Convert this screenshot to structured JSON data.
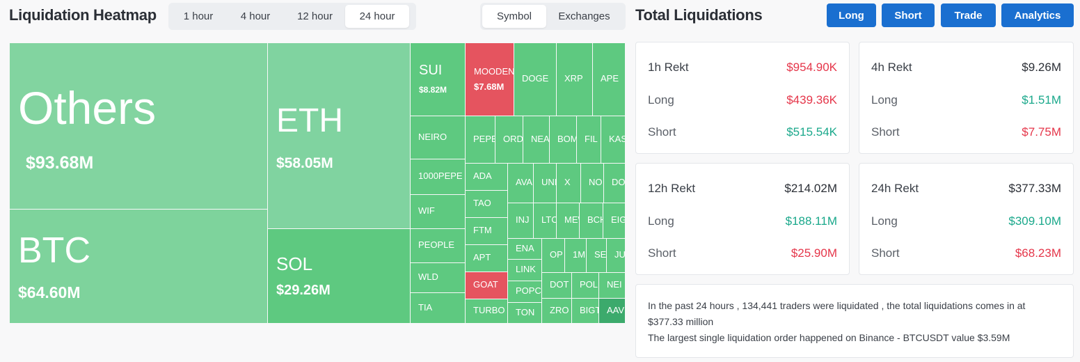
{
  "header": {
    "title": "Liquidation Heatmap",
    "time_tabs": [
      "1 hour",
      "4 hour",
      "12 hour",
      "24 hour"
    ],
    "active_time_tab": 3,
    "scope_tabs": [
      "Symbol",
      "Exchanges"
    ],
    "active_scope_tab": 0
  },
  "summary": {
    "title": "Total Liquidations",
    "buttons": [
      "Long",
      "Short",
      "Trade",
      "Analytics"
    ]
  },
  "treemap": {
    "tiles": [
      {
        "label": "Others",
        "value": "$93.68M",
        "color": "#82d4a0"
      },
      {
        "label": "BTC",
        "value": "$64.60M",
        "color": "#7ed39c"
      },
      {
        "label": "ETH",
        "value": "$58.05M",
        "color": "#80d3a0"
      },
      {
        "label": "SOL",
        "value": "$29.26M",
        "color": "#5ec980"
      },
      {
        "label": "SUI",
        "value": "$8.82M",
        "color": "#5ec980"
      },
      {
        "label": "MOODEN",
        "value": "$7.68M",
        "color": "#e5545f"
      },
      {
        "label": "DOGE",
        "color": "#5ec980"
      },
      {
        "label": "XRP",
        "color": "#5ec980"
      },
      {
        "label": "APE",
        "color": "#5ec980"
      },
      {
        "label": "NEIRO",
        "color": "#5ec980"
      },
      {
        "label": "1000PEPE",
        "color": "#5ec980"
      },
      {
        "label": "WIF",
        "color": "#5ec980"
      },
      {
        "label": "PEOPLE",
        "color": "#5ec980"
      },
      {
        "label": "WLD",
        "color": "#5ec980"
      },
      {
        "label": "TIA",
        "color": "#5ec980"
      },
      {
        "label": "PEPE",
        "color": "#5ec980"
      },
      {
        "label": "ORD",
        "color": "#5ec980"
      },
      {
        "label": "NEA",
        "color": "#5ec980"
      },
      {
        "label": "BOM",
        "color": "#5ec980"
      },
      {
        "label": "FIL",
        "color": "#5ec980"
      },
      {
        "label": "KAS",
        "color": "#5ec980"
      },
      {
        "label": "ADA",
        "color": "#5ec980"
      },
      {
        "label": "TAO",
        "color": "#5ec980"
      },
      {
        "label": "FTM",
        "color": "#5ec980"
      },
      {
        "label": "APT",
        "color": "#5ec980"
      },
      {
        "label": "GOAT",
        "color": "#e5545f"
      },
      {
        "label": "TURBO",
        "color": "#5ec980"
      },
      {
        "label": "AVA",
        "color": "#5ec980"
      },
      {
        "label": "UNI",
        "color": "#5ec980"
      },
      {
        "label": "X",
        "color": "#5ec980"
      },
      {
        "label": "NO",
        "color": "#5ec980"
      },
      {
        "label": "DOG",
        "color": "#5ec980"
      },
      {
        "label": "INJ",
        "color": "#5ec980"
      },
      {
        "label": "LTC",
        "color": "#5ec980"
      },
      {
        "label": "MEW",
        "color": "#5ec980"
      },
      {
        "label": "BCH",
        "color": "#5ec980"
      },
      {
        "label": "EIG",
        "color": "#5ec980"
      },
      {
        "label": "ENA",
        "color": "#5ec980"
      },
      {
        "label": "LINK",
        "color": "#5ec980"
      },
      {
        "label": "POPCA",
        "color": "#5ec980"
      },
      {
        "label": "TON",
        "color": "#5ec980"
      },
      {
        "label": "OP",
        "color": "#5ec980"
      },
      {
        "label": "1M",
        "color": "#5ec980"
      },
      {
        "label": "SE",
        "color": "#5ec980"
      },
      {
        "label": "JU",
        "color": "#5ec980"
      },
      {
        "label": "DOT",
        "color": "#5ec980"
      },
      {
        "label": "POL",
        "color": "#5ec980"
      },
      {
        "label": "NEI",
        "color": "#5ec980"
      },
      {
        "label": "ZRO",
        "color": "#5ec980"
      },
      {
        "label": "BIGT",
        "color": "#5ec980"
      },
      {
        "label": "AAV",
        "color": "#3caa6c"
      }
    ]
  },
  "cards": [
    {
      "title": "1h Rekt",
      "total": "$954.90K",
      "total_color": "#e5364a",
      "rows": [
        {
          "label": "Long",
          "value": "$439.36K",
          "color": "#e5364a"
        },
        {
          "label": "Short",
          "value": "$515.54K",
          "color": "#1aa88b"
        }
      ]
    },
    {
      "title": "4h Rekt",
      "total": "$9.26M",
      "total_color": "#2b2f36",
      "rows": [
        {
          "label": "Long",
          "value": "$1.51M",
          "color": "#1aa88b"
        },
        {
          "label": "Short",
          "value": "$7.75M",
          "color": "#e5364a"
        }
      ]
    },
    {
      "title": "12h Rekt",
      "total": "$214.02M",
      "total_color": "#2b2f36",
      "rows": [
        {
          "label": "Long",
          "value": "$188.11M",
          "color": "#1aa88b"
        },
        {
          "label": "Short",
          "value": "$25.90M",
          "color": "#e5364a"
        }
      ]
    },
    {
      "title": "24h Rekt",
      "total": "$377.33M",
      "total_color": "#2b2f36",
      "rows": [
        {
          "label": "Long",
          "value": "$309.10M",
          "color": "#1aa88b"
        },
        {
          "label": "Short",
          "value": "$68.23M",
          "color": "#e5364a"
        }
      ]
    }
  ],
  "notice": {
    "lines": [
      "In the past 24 hours , 134,441 traders were liquidated , the total liquidations comes in at $377.33 million",
      "The largest single liquidation order happened on Binance - BTCUSDT value $3.59M"
    ]
  }
}
